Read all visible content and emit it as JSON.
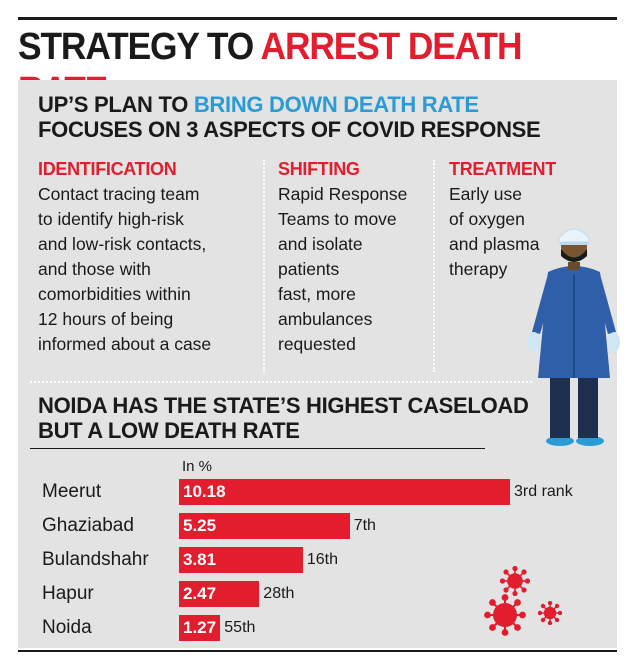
{
  "header": {
    "title_part1": "STRATEGY TO ",
    "title_part2": "ARREST DEATH RATE"
  },
  "plan": {
    "title_line1_prefix": "UP’S PLAN TO ",
    "title_line1_highlight": "BRING DOWN DEATH RATE",
    "title_line2": "FOCUSES ON 3 ASPECTS OF COVID RESPONSE",
    "aspects": [
      {
        "heading": "IDENTIFICATION",
        "lines": [
          "Contact tracing team",
          "to identify high-risk",
          "and low-risk contacts,",
          "and those with",
          "comorbidities within",
          "12 hours of being",
          "informed about a case"
        ]
      },
      {
        "heading": "SHIFTING",
        "lines": [
          "Rapid Response",
          "Teams to move",
          "and isolate",
          "patients",
          "fast, more",
          "ambulances",
          "requested"
        ]
      },
      {
        "heading": "TREATMENT",
        "lines": [
          "Early use",
          "of oxygen",
          "and plasma",
          "therapy"
        ]
      }
    ]
  },
  "colors": {
    "accent_red": "#e11d2e",
    "accent_blue": "#2b9bd6",
    "panel_gray": "#e3e3e3",
    "ppe_blue": "#2f5fa8"
  },
  "icons": [
    "healthcare-worker-icon",
    "coronavirus-icon"
  ],
  "chart_data": {
    "type": "bar",
    "orientation": "horizontal",
    "title": "NOIDA HAS THE STATE’S HIGHEST CASELOAD BUT A LOW DEATH RATE",
    "title_line1": "NOIDA HAS THE STATE’S HIGHEST CASELOAD",
    "title_line2": "BUT A LOW DEATH RATE",
    "unit_label": "In %",
    "categories": [
      "Meerut",
      "Ghaziabad",
      "Bulandshahr",
      "Hapur",
      "Noida"
    ],
    "values": [
      10.18,
      5.25,
      3.81,
      2.47,
      1.27
    ],
    "value_labels": [
      "10.18",
      "5.25",
      "3.81",
      "2.47",
      "1.27"
    ],
    "rank_labels": [
      "3rd rank",
      "7th",
      "16th",
      "28th",
      "55th"
    ],
    "xlim": [
      0,
      10.18
    ],
    "grid": false,
    "legend": "none"
  }
}
